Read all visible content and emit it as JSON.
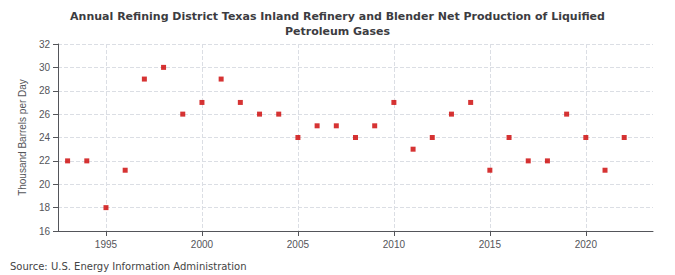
{
  "chart_data": {
    "type": "scatter",
    "title": "Annual Refining District Texas Inland Refinery and Blender Net Production of Liquified\nPetroleum Gases",
    "y_label": "Thousand Barrels per Day",
    "annotations": [
      "Source: U.S. Energy Information Administration"
    ],
    "x": [
      1993,
      1994,
      1995,
      1996,
      1997,
      1998,
      1999,
      2000,
      2001,
      2002,
      2003,
      2004,
      2005,
      2006,
      2007,
      2008,
      2009,
      2010,
      2011,
      2012,
      2013,
      2014,
      2015,
      2016,
      2017,
      2018,
      2019,
      2020,
      2021,
      2022
    ],
    "values": [
      22.0,
      22.0,
      18.0,
      21.2,
      29.0,
      30.0,
      26.0,
      27.0,
      29.0,
      27.0,
      26.0,
      26.0,
      24.0,
      25.0,
      25.0,
      24.0,
      25.0,
      27.0,
      23.0,
      24.0,
      26.0,
      27.0,
      21.2,
      24.0,
      22.0,
      22.0,
      26.0,
      24.0,
      21.2,
      24.0
    ],
    "color": "#cc0000",
    "marker": "square",
    "xlim": [
      1992.5,
      2023.5
    ],
    "xticks": [
      1995,
      2000,
      2005,
      2010,
      2015,
      2020
    ],
    "ylim": [
      16,
      32
    ],
    "yticks": [
      16,
      18,
      20,
      22,
      24,
      26,
      28,
      30,
      32
    ],
    "grid": true
  }
}
